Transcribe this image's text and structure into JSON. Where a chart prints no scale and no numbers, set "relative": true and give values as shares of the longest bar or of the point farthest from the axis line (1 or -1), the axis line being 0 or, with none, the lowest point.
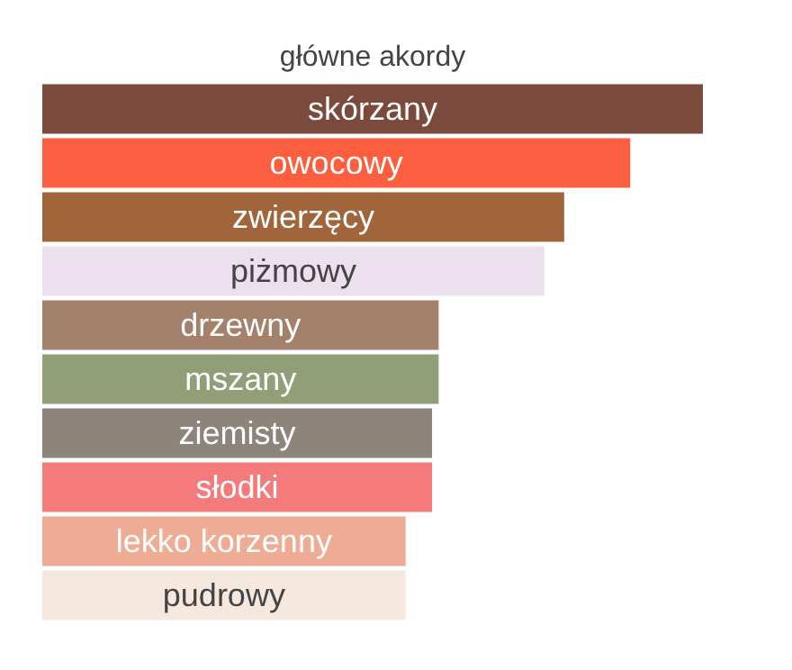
{
  "chart_data": {
    "type": "bar",
    "orientation": "horizontal",
    "relative": true,
    "title": "główne akordy",
    "categories": [
      "skórzany",
      "owocowy",
      "zwierzęcy",
      "piżmowy",
      "drzewny",
      "mszany",
      "ziemisty",
      "słodki",
      "lekko korzenny",
      "pudrowy"
    ],
    "values": [
      1,
      0.89,
      0.79,
      0.76,
      0.6,
      0.6,
      0.59,
      0.59,
      0.55,
      0.55
    ],
    "colors": [
      "#7b4a3c",
      "#fc5f3f",
      "#a0653a",
      "#ede0ee",
      "#a4816a",
      "#919f79",
      "#8d857c",
      "#f47a7b",
      "#eeac94",
      "#f5e8df"
    ]
  }
}
